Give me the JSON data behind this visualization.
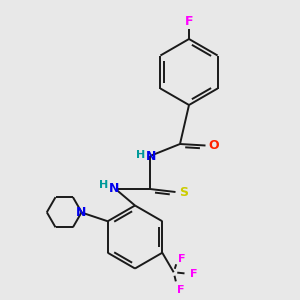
{
  "bg_color": "#e8e8e8",
  "bond_color": "#1a1a1a",
  "lw": 1.4,
  "dbo": 0.06,
  "atom_colors": {
    "F": "#ff00ff",
    "O": "#ff2200",
    "N": "#0000ee",
    "S": "#cccc00",
    "H": "#009999",
    "C": "#1a1a1a"
  }
}
